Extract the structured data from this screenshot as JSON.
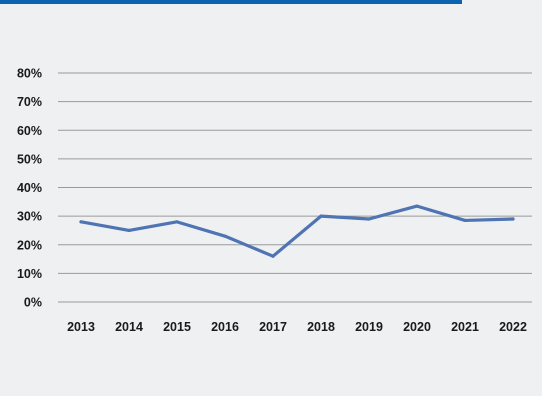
{
  "colors": {
    "panel_background": "#eff0f2",
    "top_bar": "#0e63b0",
    "gridline": "#9a9a9a",
    "series_line": "#4f74b3",
    "label_text": "#1a1a1a"
  },
  "chart_data": {
    "type": "line",
    "title": "",
    "xlabel": "",
    "ylabel": "",
    "categories": [
      "2013",
      "2014",
      "2015",
      "2016",
      "2017",
      "2018",
      "2019",
      "2020",
      "2021",
      "2022"
    ],
    "series": [
      {
        "values": [
          28,
          25,
          28,
          23,
          16,
          30,
          29,
          33.5,
          28.5,
          29
        ]
      }
    ],
    "ylim": [
      0,
      80
    ],
    "y_ticks": [
      0,
      10,
      20,
      30,
      40,
      50,
      60,
      70,
      80
    ],
    "y_tick_labels": [
      "0%",
      "10%",
      "20%",
      "30%",
      "40%",
      "50%",
      "60%",
      "70%",
      "80%"
    ],
    "grid": "horizontal",
    "legend": "none"
  }
}
